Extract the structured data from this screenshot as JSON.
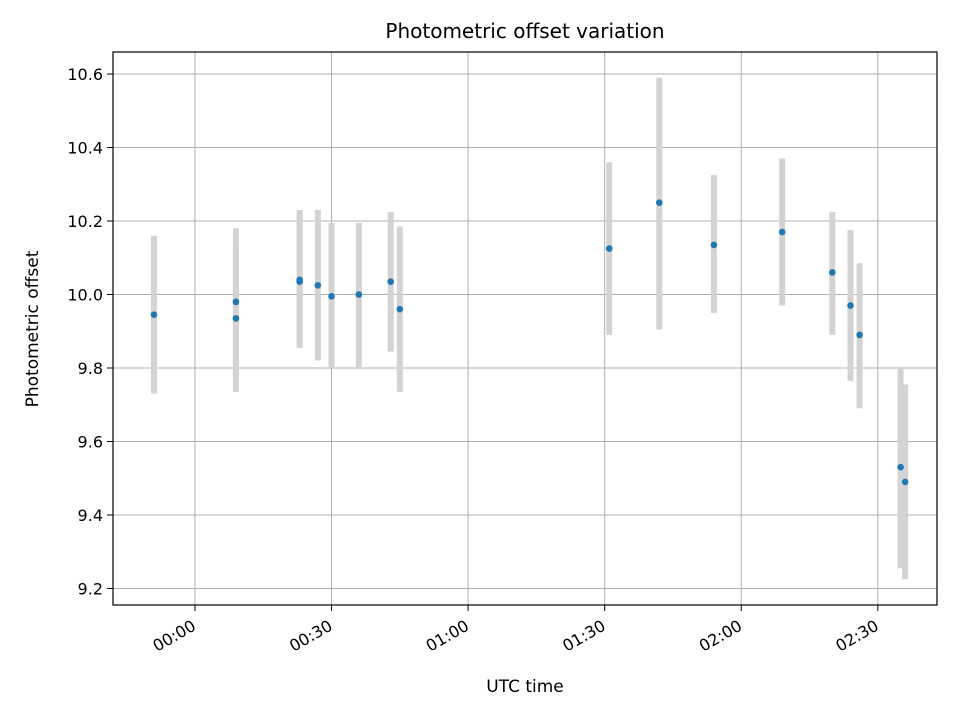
{
  "chart_data": {
    "type": "scatter",
    "title": "Photometric offset variation",
    "xlabel": "UTC time",
    "ylabel": "Photometric offset",
    "x_unit": "UTC time of day",
    "xlim": [
      "23:42",
      "02:43"
    ],
    "ylim": [
      9.155,
      10.66
    ],
    "grid": true,
    "x_ticks": [
      "00:00",
      "00:30",
      "01:00",
      "01:30",
      "02:00",
      "02:30"
    ],
    "y_ticks": [
      "9.2",
      "9.4",
      "9.6",
      "9.8",
      "10.0",
      "10.2",
      "10.4",
      "10.6"
    ],
    "marker_color": "#1f77b4",
    "errorbar_color": "#d3d3d3",
    "points": [
      {
        "t": "23:51",
        "y": 9.945,
        "lo": 9.73,
        "hi": 10.16
      },
      {
        "t": "00:09",
        "y": 9.98,
        "lo": 9.78,
        "hi": 10.18
      },
      {
        "t": "00:09",
        "y": 9.935,
        "lo": 9.735,
        "hi": 10.135
      },
      {
        "t": "00:23",
        "y": 10.035,
        "lo": 9.855,
        "hi": 10.215
      },
      {
        "t": "00:23",
        "y": 10.04,
        "lo": 9.855,
        "hi": 10.23
      },
      {
        "t": "00:27",
        "y": 10.025,
        "lo": 9.82,
        "hi": 10.23
      },
      {
        "t": "00:30",
        "y": 9.995,
        "lo": 9.8,
        "hi": 10.195
      },
      {
        "t": "00:36",
        "y": 10.0,
        "lo": 9.8,
        "hi": 10.195
      },
      {
        "t": "00:43",
        "y": 10.035,
        "lo": 9.845,
        "hi": 10.225
      },
      {
        "t": "00:45",
        "y": 9.96,
        "lo": 9.735,
        "hi": 10.185
      },
      {
        "t": "01:31",
        "y": 10.125,
        "lo": 9.89,
        "hi": 10.36
      },
      {
        "t": "01:42",
        "y": 10.25,
        "lo": 9.905,
        "hi": 10.59
      },
      {
        "t": "01:54",
        "y": 10.135,
        "lo": 9.95,
        "hi": 10.325
      },
      {
        "t": "02:09",
        "y": 10.17,
        "lo": 9.97,
        "hi": 10.37
      },
      {
        "t": "02:20",
        "y": 10.06,
        "lo": 9.89,
        "hi": 10.225
      },
      {
        "t": "02:24",
        "y": 9.97,
        "lo": 9.765,
        "hi": 10.175
      },
      {
        "t": "02:26",
        "y": 9.89,
        "lo": 9.69,
        "hi": 10.085
      },
      {
        "t": "02:35",
        "y": 9.53,
        "lo": 9.255,
        "hi": 9.8
      },
      {
        "t": "02:36",
        "y": 9.49,
        "lo": 9.225,
        "hi": 9.755
      }
    ]
  }
}
